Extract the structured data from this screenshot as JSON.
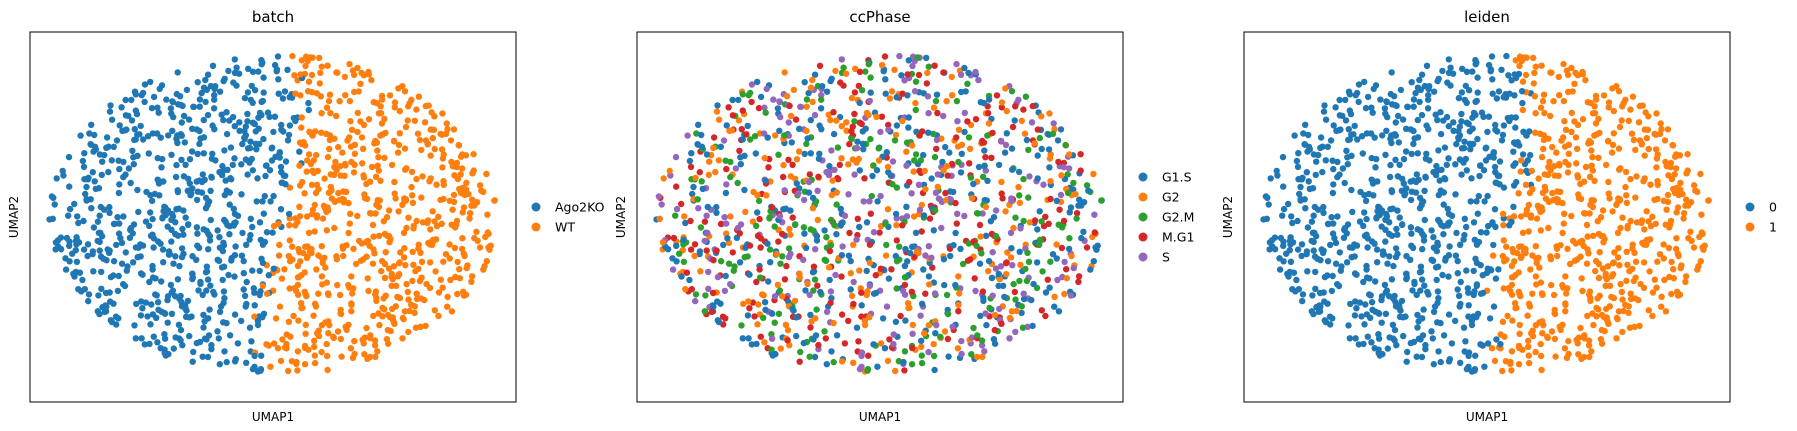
{
  "chart_data": [
    {
      "type": "scatter",
      "title": "batch",
      "xlabel": "UMAP1",
      "ylabel": "UMAP2",
      "grid": false,
      "legend_position": "right",
      "categories": [
        "Ago2KO",
        "WT"
      ],
      "colors": [
        "#1f77b4",
        "#ff7f0e"
      ],
      "coloring": "split-by-x",
      "split": 0.52
    },
    {
      "type": "scatter",
      "title": "ccPhase",
      "xlabel": "UMAP1",
      "ylabel": "UMAP2",
      "grid": false,
      "legend_position": "right",
      "categories": [
        "G1.S",
        "G2",
        "G2.M",
        "M.G1",
        "S"
      ],
      "colors": [
        "#1f77b4",
        "#ff7f0e",
        "#2ca02c",
        "#d62728",
        "#9467bd"
      ],
      "coloring": "mixed"
    },
    {
      "type": "scatter",
      "title": "leiden",
      "xlabel": "UMAP1",
      "ylabel": "UMAP2",
      "grid": false,
      "legend_position": "right",
      "categories": [
        "0",
        "1"
      ],
      "colors": [
        "#1f77b4",
        "#ff7f0e"
      ],
      "coloring": "split-by-x",
      "split": 0.54
    }
  ]
}
